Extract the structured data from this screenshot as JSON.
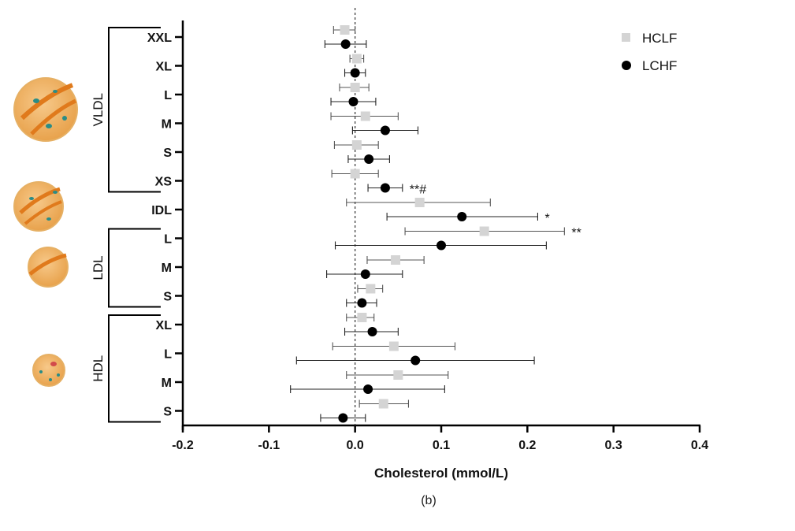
{
  "chart_data": {
    "type": "scatter",
    "subtype": "forest-plot",
    "xlabel": "Cholesterol (mmol/L)",
    "caption": "(b)",
    "xlim": [
      -0.2,
      0.4
    ],
    "xticks": [
      -0.2,
      -0.1,
      0.0,
      0.1,
      0.2,
      0.3,
      0.4
    ],
    "xtick_labels": [
      "-0.2",
      "-0.1",
      "0.0",
      "0.1",
      "0.2",
      "0.3",
      "0.4"
    ],
    "reference_line": 0,
    "categories": [
      {
        "label": "XXL",
        "group": "VLDL"
      },
      {
        "label": "XL",
        "group": "VLDL"
      },
      {
        "label": "L",
        "group": "VLDL"
      },
      {
        "label": "M",
        "group": "VLDL"
      },
      {
        "label": "S",
        "group": "VLDL"
      },
      {
        "label": "XS",
        "group": "VLDL"
      },
      {
        "label": "IDL",
        "group": "IDL"
      },
      {
        "label": "L",
        "group": "LDL"
      },
      {
        "label": "M",
        "group": "LDL"
      },
      {
        "label": "S",
        "group": "LDL"
      },
      {
        "label": "XL",
        "group": "HDL"
      },
      {
        "label": "L",
        "group": "HDL"
      },
      {
        "label": "M",
        "group": "HDL"
      },
      {
        "label": "S",
        "group": "HDL"
      }
    ],
    "groups": [
      {
        "name": "VLDL",
        "first": 0,
        "last": 5
      },
      {
        "name": "LDL",
        "first": 7,
        "last": 9
      },
      {
        "name": "HDL",
        "first": 10,
        "last": 13
      }
    ],
    "series": [
      {
        "name": "HCLF",
        "color": "#d4d4d4",
        "marker": "square",
        "values": [
          -0.012,
          0.002,
          0.0,
          0.012,
          0.002,
          0.0,
          0.075,
          0.15,
          0.047,
          0.018,
          0.008,
          0.045,
          0.05,
          0.033
        ],
        "ci_low": [
          -0.025,
          -0.006,
          -0.018,
          -0.028,
          -0.024,
          -0.027,
          -0.01,
          0.058,
          0.014,
          0.003,
          -0.01,
          -0.026,
          -0.01,
          0.005
        ],
        "ci_high": [
          0.0,
          0.01,
          0.016,
          0.05,
          0.027,
          0.027,
          0.157,
          0.243,
          0.08,
          0.032,
          0.022,
          0.116,
          0.108,
          0.062
        ]
      },
      {
        "name": "LCHF",
        "color": "#000000",
        "marker": "circle",
        "values": [
          -0.011,
          0.0,
          -0.002,
          0.035,
          0.016,
          0.035,
          0.124,
          0.1,
          0.012,
          0.008,
          0.02,
          0.07,
          0.015,
          -0.014
        ],
        "ci_low": [
          -0.035,
          -0.012,
          -0.028,
          -0.003,
          -0.008,
          0.015,
          0.037,
          -0.023,
          -0.033,
          -0.01,
          -0.012,
          -0.068,
          -0.075,
          -0.04
        ],
        "ci_high": [
          0.013,
          0.012,
          0.024,
          0.073,
          0.04,
          0.055,
          0.212,
          0.222,
          0.055,
          0.025,
          0.05,
          0.208,
          0.104,
          0.012
        ]
      }
    ],
    "annotations": [
      {
        "text": "**#",
        "category_index": 5,
        "series": "LCHF"
      },
      {
        "text": "*",
        "category_index": 6,
        "series": "LCHF"
      },
      {
        "text": "**",
        "category_index": 7,
        "series": "HCLF"
      }
    ],
    "legend": {
      "position": "top-right",
      "entries": [
        "HCLF",
        "LCHF"
      ]
    }
  }
}
